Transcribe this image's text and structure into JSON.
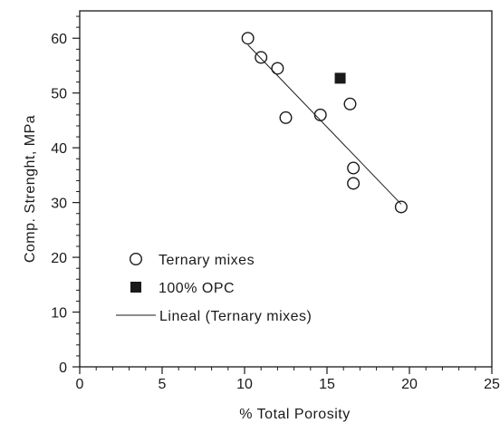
{
  "chart_data": {
    "type": "scatter",
    "xlabel": "% Total Porosity",
    "ylabel": "Comp. Strenght, MPa",
    "xlim": [
      0,
      25
    ],
    "ylim": [
      0,
      65
    ],
    "x_ticks": [
      "0",
      "5",
      "10",
      "15",
      "20",
      "25"
    ],
    "y_ticks": [
      "0",
      "10",
      "20",
      "30",
      "40",
      "50",
      "60"
    ],
    "x_tick_values": [
      0,
      5,
      10,
      15,
      20,
      25
    ],
    "y_tick_values": [
      0,
      10,
      20,
      30,
      40,
      50,
      60
    ],
    "x_minor_step": 1,
    "y_minor_step": 2,
    "grid": false,
    "legend_position": "bottom-left",
    "series": [
      {
        "name": "Ternary mixes",
        "marker": "open-circle",
        "color": "#1a1a1a",
        "points": [
          {
            "x": 10.2,
            "y": 60.0
          },
          {
            "x": 11.0,
            "y": 56.5
          },
          {
            "x": 12.0,
            "y": 54.5
          },
          {
            "x": 12.5,
            "y": 45.5
          },
          {
            "x": 14.6,
            "y": 46.0
          },
          {
            "x": 16.4,
            "y": 48.0
          },
          {
            "x": 16.6,
            "y": 36.3
          },
          {
            "x": 16.6,
            "y": 33.5
          },
          {
            "x": 19.5,
            "y": 29.2
          }
        ]
      },
      {
        "name": "100% OPC",
        "marker": "filled-square",
        "color": "#1a1a1a",
        "points": [
          {
            "x": 15.8,
            "y": 52.7
          }
        ]
      },
      {
        "name": "Lineal (Ternary mixes)",
        "marker": "line",
        "color": "#1a1a1a",
        "points": [
          {
            "x": 10.2,
            "y": 58.8
          },
          {
            "x": 19.5,
            "y": 29.7
          }
        ]
      }
    ]
  }
}
